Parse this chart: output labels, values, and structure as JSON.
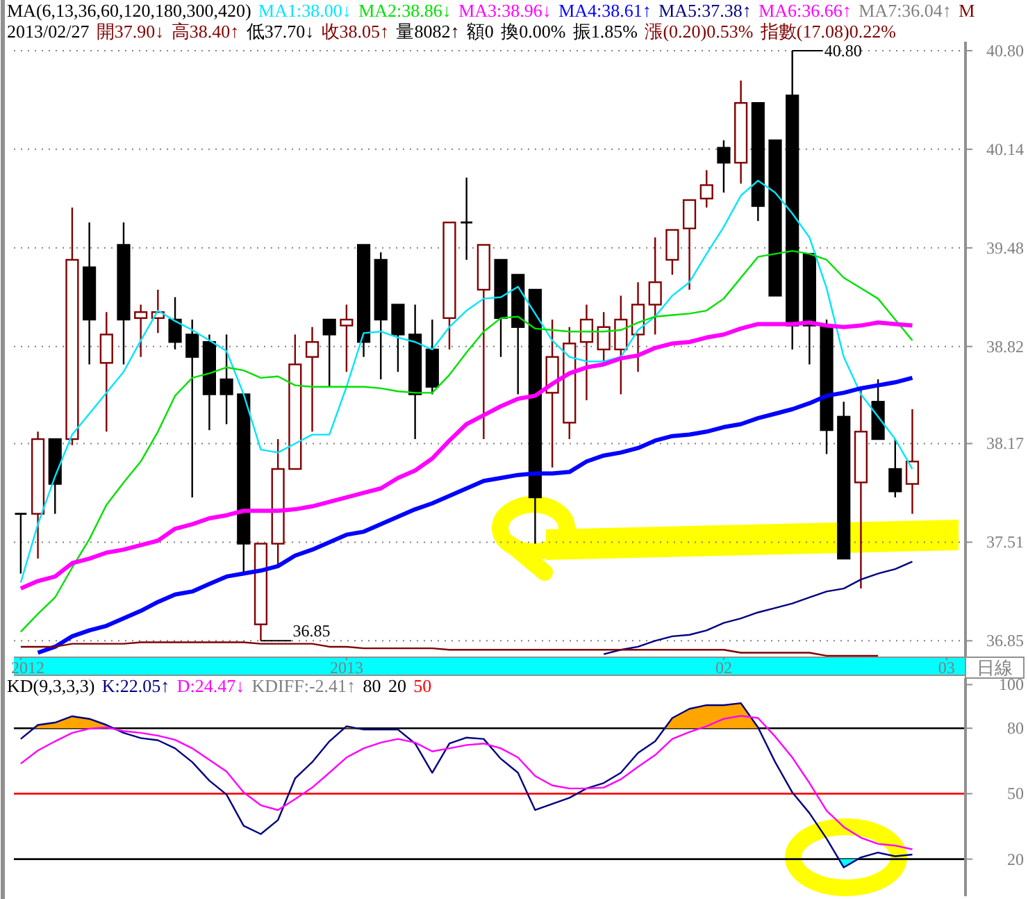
{
  "chart_data": [
    {
      "type": "candlestick",
      "title": "MA(6,13,36,60,120,180,300,420)",
      "legend": "top",
      "grid": "y",
      "xlabel": "日線",
      "categories": [
        "2012",
        null,
        null,
        null,
        null,
        null,
        null,
        null,
        null,
        null,
        null,
        null,
        null,
        null,
        null,
        null,
        null,
        null,
        null,
        "2013",
        null,
        null,
        null,
        null,
        null,
        null,
        null,
        null,
        null,
        null,
        null,
        null,
        null,
        null,
        null,
        null,
        null,
        null,
        null,
        null,
        null,
        "02",
        null,
        null,
        null,
        null,
        null,
        null,
        null,
        null,
        null,
        null,
        null,
        null,
        "03"
      ],
      "ohlc": [
        [
          37.7,
          37.7,
          37.3,
          37.7
        ],
        [
          37.7,
          38.25,
          37.4,
          38.2
        ],
        [
          38.2,
          38.2,
          37.7,
          37.9
        ],
        [
          38.2,
          39.75,
          38.16,
          39.4
        ],
        [
          39.35,
          39.65,
          38.7,
          39.0
        ],
        [
          38.71,
          39.05,
          38.25,
          38.9
        ],
        [
          39.5,
          39.65,
          38.7,
          39.0
        ],
        [
          39.01,
          39.1,
          38.75,
          39.05
        ],
        [
          39.01,
          39.2,
          38.91,
          39.05
        ],
        [
          39.0,
          39.15,
          38.8,
          38.85
        ],
        [
          38.9,
          39.0,
          37.81,
          38.75
        ],
        [
          38.85,
          38.9,
          38.26,
          38.5
        ],
        [
          38.6,
          38.9,
          38.3,
          38.5
        ],
        [
          38.5,
          38.5,
          37.31,
          37.5
        ],
        [
          36.96,
          37.5,
          36.85,
          37.5
        ],
        [
          37.5,
          38.2,
          37.36,
          38.0
        ],
        [
          38.0,
          38.9,
          38.0,
          38.7
        ],
        [
          38.75,
          38.95,
          38.25,
          38.85
        ],
        [
          39.0,
          39.0,
          38.55,
          38.9
        ],
        [
          38.96,
          39.1,
          38.65,
          39.0
        ],
        [
          39.5,
          39.5,
          38.75,
          38.85
        ],
        [
          39.4,
          39.45,
          38.6,
          39.0
        ],
        [
          39.1,
          39.1,
          38.65,
          38.9
        ],
        [
          38.9,
          39.1,
          38.2,
          38.5
        ],
        [
          38.8,
          39.0,
          38.5,
          38.55
        ],
        [
          39.01,
          39.65,
          38.8,
          39.65
        ],
        [
          39.65,
          39.95,
          39.4,
          39.65
        ],
        [
          39.2,
          39.5,
          38.2,
          39.5
        ],
        [
          39.4,
          39.4,
          38.75,
          39.01
        ],
        [
          39.3,
          39.3,
          38.5,
          38.95
        ],
        [
          39.2,
          39.2,
          37.5,
          37.81
        ],
        [
          38.51,
          39.0,
          38.01,
          38.75
        ],
        [
          38.31,
          38.95,
          38.2,
          38.84
        ],
        [
          38.85,
          39.1,
          38.46,
          39.0
        ],
        [
          38.8,
          39.05,
          38.71,
          38.95
        ],
        [
          38.8,
          39.16,
          38.5,
          39.0
        ],
        [
          38.9,
          39.25,
          38.65,
          39.1
        ],
        [
          39.1,
          39.55,
          38.9,
          39.25
        ],
        [
          39.4,
          39.6,
          39.3,
          39.6
        ],
        [
          39.61,
          39.8,
          39.2,
          39.8
        ],
        [
          39.81,
          40.0,
          39.75,
          39.9
        ],
        [
          40.15,
          40.2,
          39.85,
          40.05
        ],
        [
          40.05,
          40.6,
          39.91,
          40.45
        ],
        [
          40.45,
          40.45,
          39.66,
          39.76
        ],
        [
          40.2,
          40.2,
          39.16,
          39.16
        ],
        [
          40.5,
          40.8,
          38.8,
          38.96
        ],
        [
          39.44,
          39.44,
          38.7,
          38.96
        ],
        [
          38.96,
          39.0,
          38.1,
          38.26
        ],
        [
          38.35,
          38.45,
          37.4,
          37.4
        ],
        [
          37.91,
          38.55,
          37.2,
          38.25
        ],
        [
          38.45,
          38.6,
          38.2,
          38.2
        ],
        [
          38.0,
          38.2,
          37.81,
          37.85
        ],
        [
          37.9,
          38.4,
          37.7,
          38.05
        ],
        null,
        null
      ],
      "series": [
        {
          "name": "MA1:38.00↓",
          "color": "#00e5ff",
          "type": "line",
          "values": [
            37.24,
            37.63,
            37.95,
            38.23,
            38.37,
            38.51,
            38.65,
            38.86,
            39.06,
            38.99,
            38.93,
            38.86,
            38.79,
            38.5,
            38.13,
            38.11,
            38.17,
            38.23,
            38.23,
            38.55,
            38.91,
            38.92,
            38.88,
            38.85,
            38.8,
            38.95,
            39.06,
            39.14,
            39.15,
            39.22,
            39.04,
            38.86,
            38.75,
            38.72,
            38.72,
            38.75,
            38.93,
            39.02,
            39.16,
            39.25,
            39.44,
            39.62,
            39.83,
            39.93,
            39.85,
            39.71,
            39.55,
            39.21,
            38.75,
            38.5,
            38.35,
            38.2,
            38.0,
            null,
            null
          ]
        },
        {
          "name": "MA2:38.86↓",
          "color": "#00e000",
          "type": "line",
          "values": [
            36.91,
            37.03,
            37.14,
            37.34,
            37.53,
            37.76,
            37.91,
            38.05,
            38.25,
            38.49,
            38.61,
            38.64,
            38.68,
            38.66,
            38.61,
            38.62,
            38.56,
            38.55,
            38.55,
            38.55,
            38.55,
            38.54,
            38.52,
            38.51,
            38.51,
            38.63,
            38.78,
            38.92,
            39.01,
            39.02,
            38.94,
            38.93,
            38.92,
            38.92,
            38.92,
            38.93,
            38.98,
            39.02,
            39.03,
            39.04,
            39.06,
            39.14,
            39.28,
            39.42,
            39.44,
            39.46,
            39.44,
            39.4,
            39.28,
            39.21,
            39.14,
            39.0,
            38.86,
            null,
            null
          ]
        },
        {
          "name": "MA3:38.96↓",
          "color": "#ff00ff",
          "type": "line",
          "values": [
            37.2,
            37.25,
            37.28,
            37.37,
            37.4,
            37.44,
            37.46,
            37.49,
            37.52,
            37.6,
            37.63,
            37.67,
            37.69,
            37.72,
            37.72,
            37.72,
            37.73,
            37.75,
            37.78,
            37.81,
            37.84,
            37.87,
            37.94,
            37.99,
            38.07,
            38.19,
            38.3,
            38.36,
            38.42,
            38.47,
            38.49,
            38.57,
            38.64,
            38.68,
            38.7,
            38.74,
            38.76,
            38.81,
            38.84,
            38.85,
            38.88,
            38.9,
            38.94,
            38.97,
            38.97,
            38.97,
            38.98,
            38.96,
            38.95,
            38.96,
            38.98,
            38.97,
            38.96,
            null,
            null
          ]
        },
        {
          "name": "MA4:38.61↑",
          "color": "#0000ff",
          "type": "line",
          "values": [
            null,
            36.77,
            36.81,
            36.88,
            36.92,
            36.95,
            37.0,
            37.05,
            37.11,
            37.16,
            37.18,
            37.23,
            37.28,
            37.3,
            37.32,
            37.35,
            37.42,
            37.46,
            37.51,
            37.56,
            37.58,
            37.63,
            37.68,
            37.73,
            37.77,
            37.82,
            37.87,
            37.92,
            37.94,
            37.96,
            37.97,
            37.97,
            37.98,
            38.05,
            38.09,
            38.11,
            38.14,
            38.19,
            38.22,
            38.23,
            38.25,
            38.28,
            38.3,
            38.34,
            38.37,
            38.4,
            38.44,
            38.49,
            38.51,
            38.54,
            38.56,
            38.58,
            38.61,
            null,
            null
          ]
        },
        {
          "name": "MA5:37.38↑",
          "color": "#000080",
          "type": "line",
          "values": [
            null,
            null,
            null,
            null,
            null,
            null,
            null,
            null,
            null,
            null,
            null,
            null,
            null,
            null,
            null,
            null,
            null,
            null,
            null,
            null,
            null,
            null,
            null,
            null,
            null,
            null,
            null,
            null,
            null,
            null,
            null,
            null,
            null,
            null,
            36.76,
            36.79,
            36.81,
            36.85,
            36.88,
            36.89,
            36.92,
            36.97,
            37.0,
            37.04,
            37.07,
            37.1,
            37.14,
            37.18,
            37.2,
            37.26,
            37.3,
            37.33,
            37.38,
            null,
            null
          ]
        },
        {
          "name": "MA6:36.66↑",
          "color": "#ff00ff",
          "type": "line",
          "values": [
            null,
            null,
            null,
            null,
            null,
            null,
            null,
            null,
            null,
            null,
            null,
            null,
            null,
            null,
            null,
            null,
            null,
            null,
            null,
            null,
            null,
            null,
            null,
            null,
            null,
            null,
            null,
            null,
            null,
            null,
            null,
            null,
            null,
            null,
            null,
            null,
            null,
            null,
            null,
            null,
            null,
            null,
            null,
            null,
            null,
            null,
            null,
            null,
            null,
            null,
            null,
            null,
            null,
            null,
            null
          ]
        },
        {
          "name": "MA7:36.04↑",
          "color": "#808080",
          "type": "line",
          "values": [
            null,
            null,
            null,
            null,
            null,
            null,
            null,
            null,
            null,
            null,
            null,
            null,
            null,
            null,
            null,
            null,
            null,
            null,
            null,
            null,
            null,
            null,
            null,
            null,
            null,
            null,
            null,
            null,
            null,
            null,
            null,
            null,
            null,
            null,
            null,
            null,
            null,
            null,
            null,
            null,
            null,
            null,
            null,
            null,
            null,
            null,
            null,
            null,
            null,
            null,
            null,
            null,
            null,
            null,
            null
          ]
        },
        {
          "name": "M",
          "color": "#800000",
          "type": "line",
          "values": [
            36.81,
            36.81,
            36.81,
            36.83,
            36.83,
            36.83,
            36.83,
            36.84,
            36.84,
            36.84,
            36.84,
            36.84,
            36.84,
            36.84,
            36.83,
            36.83,
            36.83,
            36.83,
            36.81,
            36.81,
            36.8,
            36.8,
            36.8,
            36.8,
            36.8,
            36.79,
            36.79,
            36.79,
            36.79,
            36.79,
            36.79,
            36.79,
            36.79,
            36.79,
            36.79,
            36.79,
            36.79,
            36.79,
            36.79,
            36.79,
            36.79,
            36.79,
            36.77,
            36.77,
            36.77,
            36.77,
            36.77,
            36.75,
            36.75,
            36.75,
            36.75,
            null,
            null,
            null,
            null
          ]
        }
      ],
      "annotations": [
        "2013/02/27",
        "開37.90↓",
        "高38.40↑",
        "低37.70↓",
        "收38.05↑",
        "量8082↑",
        "額0",
        "換0.00%",
        "振1.85%",
        "漲(0.20)0.53%",
        "指數(17.08)0.22%",
        "40.80",
        "36.85"
      ],
      "ylim": [
        36.74,
        40.86
      ],
      "yticks": [
        {
          "value": 40.8,
          "label": "40.80"
        },
        40.14,
        39.48,
        38.82,
        38.17,
        37.51,
        36.85
      ]
    },
    {
      "type": "line",
      "title": "KD(9,3,3,3)",
      "legend": "top",
      "tick_labels": "y",
      "categories": [
        null,
        null,
        null,
        null,
        null,
        null,
        null,
        null,
        null,
        null,
        null,
        null,
        null,
        null,
        null,
        null,
        null,
        null,
        null,
        null,
        null,
        null,
        null,
        null,
        null,
        null,
        null,
        null,
        null,
        null,
        null,
        null,
        null,
        null,
        null,
        null,
        null,
        null,
        null,
        null,
        null,
        null,
        null,
        null,
        null,
        null,
        null,
        null,
        null,
        null,
        null,
        null,
        null,
        null,
        null
      ],
      "series": [
        {
          "name": "K:22.05↑",
          "color": "#000080",
          "values": [
            75.1,
            81.5,
            82.6,
            85.5,
            84.3,
            81.5,
            77.9,
            75.5,
            74.5,
            70.8,
            64.5,
            56.0,
            49.6,
            35.3,
            31.5,
            37.9,
            57.0,
            64.5,
            74.0,
            80.9,
            79.4,
            79.4,
            79.4,
            73.0,
            59.6,
            73.0,
            75.7,
            75.1,
            66.0,
            59.6,
            42.5,
            45.3,
            48.1,
            52.4,
            54.9,
            59.6,
            68.7,
            74.0,
            84.7,
            88.9,
            90.6,
            90.6,
            91.5,
            80.4,
            64.5,
            50.6,
            41.1,
            29.4,
            16.2,
            20.8,
            23.0,
            21.3,
            22.1,
            null,
            null
          ]
        },
        {
          "name": "D:24.47↓",
          "color": "#ff00ff",
          "values": [
            63.8,
            69.8,
            74.0,
            77.9,
            79.8,
            80.4,
            78.7,
            77.9,
            76.6,
            74.7,
            70.8,
            65.5,
            60.2,
            50.6,
            44.7,
            42.5,
            47.5,
            52.8,
            59.6,
            66.6,
            70.8,
            73.4,
            75.1,
            73.4,
            69.4,
            70.8,
            72.3,
            73.0,
            70.8,
            66.6,
            58.1,
            53.8,
            52.4,
            52.4,
            52.8,
            56.6,
            62.3,
            67.7,
            75.1,
            78.3,
            80.9,
            84.3,
            85.7,
            84.7,
            76.2,
            66.6,
            54.9,
            42.2,
            34.7,
            29.8,
            27.0,
            26.2,
            24.5,
            null,
            null
          ]
        }
      ],
      "annotations": [
        "KDIFF:-2.41↑",
        "80",
        "20",
        "50"
      ],
      "ref_lines": [
        {
          "axis": "y",
          "value": 80,
          "color": "#000000"
        },
        {
          "axis": "y",
          "value": 20,
          "color": "#000000"
        },
        {
          "axis": "y",
          "value": 50,
          "color": "#ff0000"
        }
      ],
      "ylim": [
        3,
        103
      ],
      "yticks": [
        100,
        80,
        50,
        20
      ]
    }
  ]
}
